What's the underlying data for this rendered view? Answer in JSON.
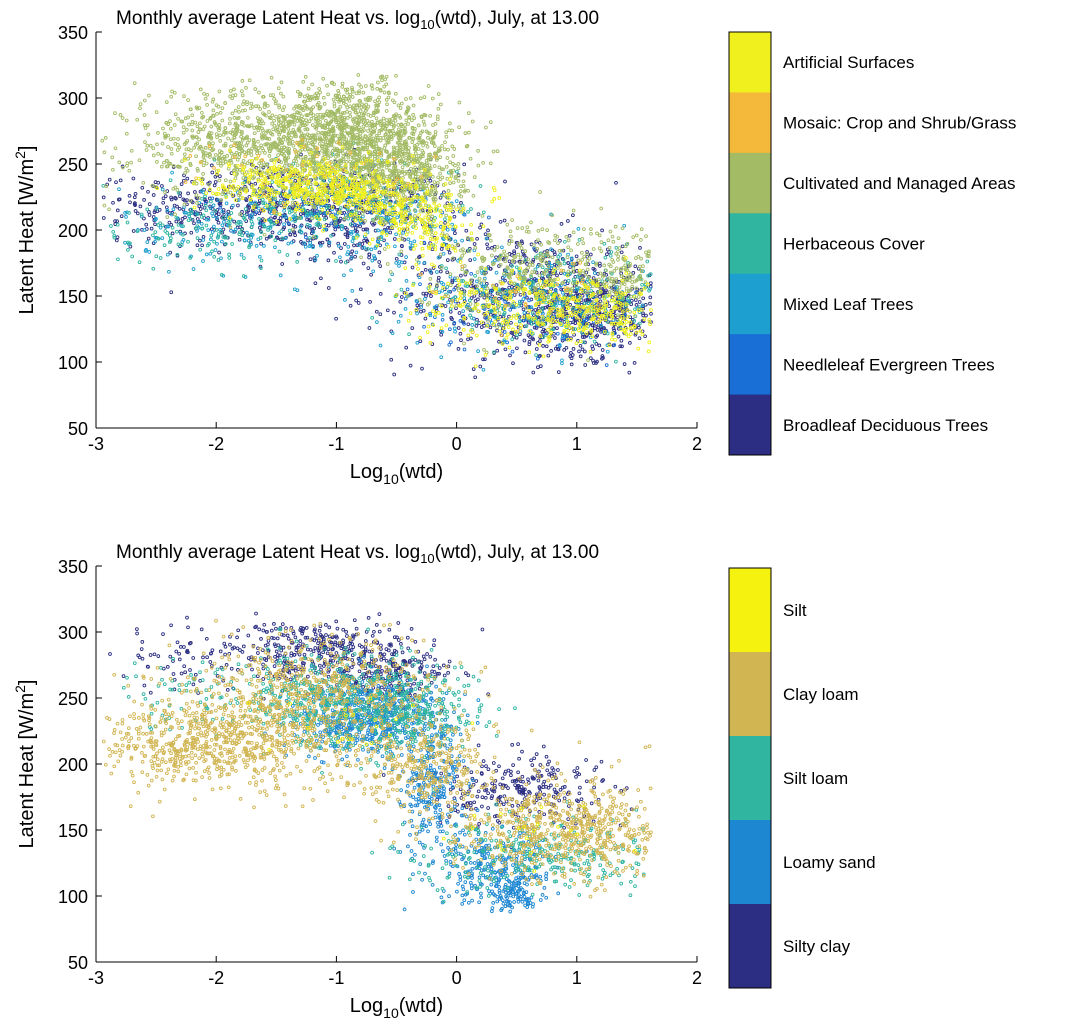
{
  "chart_data": [
    {
      "type": "scatter",
      "title": "Monthly average Latent Heat vs. log",
      "title_sub": "10",
      "title_tail": "(wtd), July, at 13.00",
      "xlabel": "Log",
      "xlabel_sub": "10",
      "xlabel_tail": "(wtd)",
      "ylabel": "Latent Heat [W/m",
      "ylabel_sup": "2",
      "ylabel_tail": "]",
      "xlim": [
        -3,
        2
      ],
      "ylim": [
        50,
        350
      ],
      "xticks": [
        "-3",
        "-2",
        "-1",
        "0",
        "1",
        "2"
      ],
      "yticks": [
        "50",
        "100",
        "150",
        "200",
        "250",
        "300",
        "350"
      ],
      "grid": false,
      "legend": "colorbar-right",
      "series": [
        {
          "name": "Broadleaf Deciduous Trees",
          "color": "#2b2e82",
          "clusters": [
            [
              -1.6,
              220,
              0.5,
              16,
              350
            ],
            [
              -0.8,
              210,
              0.4,
              20,
              350
            ],
            [
              0.5,
              150,
              0.5,
              25,
              500
            ],
            [
              1.2,
              140,
              0.3,
              18,
              400
            ],
            [
              -2.5,
              215,
              0.3,
              14,
              80
            ]
          ]
        },
        {
          "name": "Needleleaf Evergreen Trees",
          "color": "#1a6fd6",
          "clusters": [
            [
              -1.0,
              220,
              0.5,
              12,
              90
            ],
            [
              0.6,
              140,
              0.5,
              16,
              120
            ]
          ]
        },
        {
          "name": "Mixed Leaf Trees",
          "color": "#1d9fd0",
          "clusters": [
            [
              -1.8,
              205,
              0.5,
              14,
              160
            ],
            [
              -0.6,
              200,
              0.5,
              20,
              160
            ],
            [
              0.6,
              145,
              0.6,
              20,
              200
            ]
          ]
        },
        {
          "name": "Herbaceous Cover",
          "color": "#2fb5a0",
          "clusters": [
            [
              -2.0,
              200,
              0.6,
              14,
              160
            ],
            [
              -1.0,
              225,
              0.5,
              16,
              160
            ],
            [
              0.8,
              150,
              0.6,
              16,
              220
            ]
          ]
        },
        {
          "name": "Cultivated and Managed Areas",
          "color": "#a3bb65",
          "clusters": [
            [
              -1.7,
              265,
              0.5,
              20,
              800
            ],
            [
              -0.9,
              270,
              0.35,
              22,
              1000
            ],
            [
              -0.4,
              245,
              0.25,
              20,
              500
            ],
            [
              0.6,
              170,
              0.5,
              20,
              350
            ],
            [
              1.4,
              165,
              0.2,
              15,
              120
            ]
          ]
        },
        {
          "name": "Mosaic: Crop and Shrub/Grass",
          "color": "#f4b83a",
          "clusters": [
            [
              -1.2,
              240,
              0.5,
              14,
              70
            ],
            [
              0.5,
              150,
              0.4,
              14,
              40
            ]
          ]
        },
        {
          "name": "Artificial Surfaces",
          "color": "#f0f01e",
          "clusters": [
            [
              -1.3,
              235,
              0.4,
              10,
              300
            ],
            [
              -0.8,
              225,
              0.35,
              10,
              250
            ],
            [
              -0.3,
              205,
              0.2,
              12,
              150
            ],
            [
              0.6,
              140,
              0.5,
              14,
              250
            ],
            [
              1.2,
              135,
              0.25,
              12,
              150
            ]
          ]
        }
      ]
    },
    {
      "type": "scatter",
      "title": "Monthly average Latent Heat vs. log",
      "title_sub": "10",
      "title_tail": "(wtd), July, at 13.00",
      "xlabel": "Log",
      "xlabel_sub": "10",
      "xlabel_tail": "(wtd)",
      "ylabel": "Latent Heat [W/m",
      "ylabel_sup": "2",
      "ylabel_tail": "]",
      "xlim": [
        -3,
        2
      ],
      "ylim": [
        50,
        350
      ],
      "xticks": [
        "-3",
        "-2",
        "-1",
        "0",
        "1",
        "2"
      ],
      "yticks": [
        "50",
        "100",
        "150",
        "200",
        "250",
        "300",
        "350"
      ],
      "grid": false,
      "legend": "colorbar-right",
      "series": [
        {
          "name": "Silty clay",
          "color": "#2b2e82",
          "clusters": [
            [
              -1.2,
              285,
              0.35,
              12,
              300
            ],
            [
              -0.6,
              270,
              0.3,
              14,
              200
            ],
            [
              0.5,
              180,
              0.4,
              14,
              250
            ],
            [
              -2.2,
              280,
              0.4,
              14,
              80
            ]
          ]
        },
        {
          "name": "Loamy sand",
          "color": "#1e87d2",
          "clusters": [
            [
              -0.7,
              235,
              0.3,
              14,
              600
            ],
            [
              -0.2,
              180,
              0.15,
              25,
              250
            ],
            [
              0.3,
              120,
              0.25,
              15,
              250
            ],
            [
              0.5,
              108,
              0.1,
              10,
              100
            ]
          ]
        },
        {
          "name": "Silt loam",
          "color": "#2fb5a0",
          "clusters": [
            [
              -1.1,
              250,
              0.35,
              18,
              400
            ],
            [
              -0.4,
              240,
              0.3,
              18,
              300
            ],
            [
              0.7,
              130,
              0.5,
              14,
              300
            ],
            [
              -2.3,
              250,
              0.3,
              14,
              60
            ]
          ]
        },
        {
          "name": "Clay loam",
          "color": "#d1b552",
          "clusters": [
            [
              -2.0,
              215,
              0.5,
              18,
              700
            ],
            [
              -1.2,
              255,
              0.5,
              22,
              600
            ],
            [
              0.9,
              150,
              0.5,
              18,
              700
            ],
            [
              -0.3,
              200,
              0.3,
              18,
              300
            ]
          ]
        },
        {
          "name": "Silt",
          "color": "#f4f20e",
          "clusters": [
            [
              -1.0,
              230,
              0.4,
              12,
              20
            ],
            [
              0.8,
              150,
              0.4,
              12,
              20
            ]
          ]
        }
      ]
    }
  ]
}
